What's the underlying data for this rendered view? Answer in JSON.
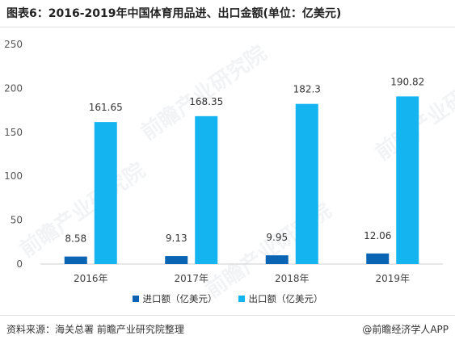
{
  "header": {
    "title": "图表6：2016-2019年中国体育用品进、出口金额(单位：亿美元)"
  },
  "footer": {
    "source": "资料来源：海关总署 前瞻产业研究院整理",
    "brand": "@前瞻经济学人APP"
  },
  "watermark": {
    "text": "前瞻产业研究院"
  },
  "legend": [
    {
      "label": "进口额（亿美元）",
      "color": "#0a64b4"
    },
    {
      "label": "出口额（亿美元）",
      "color": "#14b4f0"
    }
  ],
  "chart_data": {
    "type": "bar",
    "categories": [
      "2016年",
      "2017年",
      "2018年",
      "2019年"
    ],
    "series": [
      {
        "name": "进口额（亿美元）",
        "values": [
          8.58,
          9.13,
          9.95,
          12.06
        ],
        "labels": [
          "8.58",
          "9.13",
          "9.95",
          "12.06"
        ],
        "color": "#0a64b4"
      },
      {
        "name": "出口额（亿美元）",
        "values": [
          161.65,
          168.35,
          182.3,
          190.82
        ],
        "labels": [
          "161.65",
          "168.35",
          "182.3",
          "190.82"
        ],
        "color": "#14b4f0"
      }
    ],
    "ylim": [
      0,
      250
    ],
    "yticks": [
      0,
      50,
      100,
      150,
      200,
      250
    ],
    "grid": false,
    "legend_position": "bottom"
  }
}
